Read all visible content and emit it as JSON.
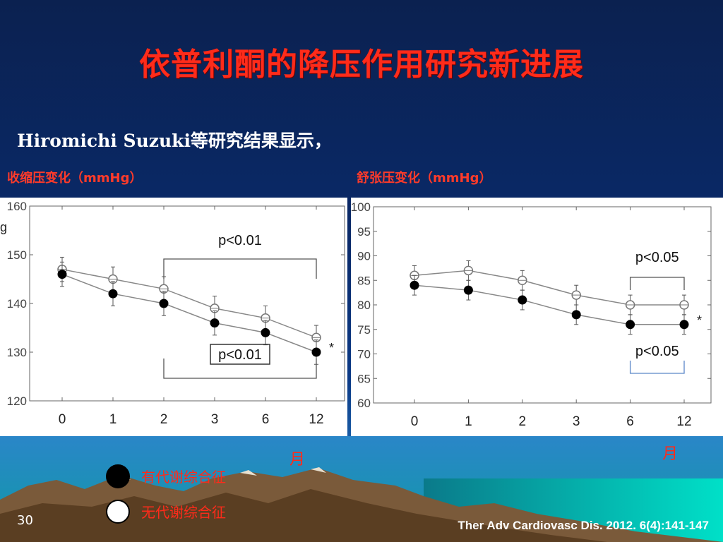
{
  "slide": {
    "title": "依普利酮的降压作用研究新进展",
    "subtitle": "Hiromichi Suzuki等研究结果显示，",
    "page_number": "30",
    "citation": "Ther Adv Cardiovasc Dis. 2012. 6(4):141-147",
    "month_label_left": "月",
    "month_label_right": "月",
    "left_axis_fragment": "g"
  },
  "legend": {
    "items": [
      {
        "label": "有代谢综合征",
        "marker": "filled-circle"
      },
      {
        "label": "无代谢综合征",
        "marker": "open-circle"
      }
    ]
  },
  "colors": {
    "title": "#ff2b1a",
    "labels": "#ff3b2a",
    "line": "#888888"
  },
  "chart_data": [
    {
      "type": "line",
      "title": "收缩压变化（mmHg）",
      "categories": [
        "0",
        "1",
        "2",
        "3",
        "6",
        "12"
      ],
      "yticks": [
        "120",
        "130",
        "140",
        "150",
        "160"
      ],
      "ylim": [
        120,
        160
      ],
      "series": [
        {
          "name": "无代谢综合征",
          "marker": "open",
          "values": [
            147,
            145,
            143,
            139,
            137,
            133
          ],
          "err": [
            2.5,
            2.5,
            2.5,
            2.5,
            2.5,
            2.5
          ]
        },
        {
          "name": "有代谢综合征",
          "marker": "filled",
          "values": [
            146,
            142,
            140,
            136,
            134,
            130
          ],
          "err": [
            2.5,
            2.5,
            2.5,
            2.5,
            2.5,
            2.5
          ]
        }
      ],
      "annotations": [
        {
          "text": "p<0.01",
          "from": "2",
          "to": "12",
          "position": "top"
        },
        {
          "text": "p<0.01",
          "from": "2",
          "to": "12",
          "position": "bottom",
          "boxed": true
        },
        {
          "text": "*",
          "at": "12"
        }
      ]
    },
    {
      "type": "line",
      "title": "舒张压变化（mmHg）",
      "categories": [
        "0",
        "1",
        "2",
        "3",
        "6",
        "12"
      ],
      "yticks": [
        "60",
        "65",
        "70",
        "75",
        "80",
        "85",
        "90",
        "95",
        "100"
      ],
      "ylim": [
        60,
        100
      ],
      "series": [
        {
          "name": "无代谢综合征",
          "marker": "open",
          "values": [
            86,
            87,
            85,
            82,
            80,
            80
          ],
          "err": [
            2,
            2,
            2,
            2,
            2,
            2
          ]
        },
        {
          "name": "有代谢综合征",
          "marker": "filled",
          "values": [
            84,
            83,
            81,
            78,
            76,
            76
          ],
          "err": [
            2,
            2,
            2,
            2,
            2,
            2
          ]
        }
      ],
      "annotations": [
        {
          "text": "p<0.05",
          "from": "6",
          "to": "12",
          "position": "top"
        },
        {
          "text": "p<0.05",
          "from": "6",
          "to": "12",
          "position": "bottom"
        },
        {
          "text": "*",
          "at": "12"
        }
      ]
    }
  ]
}
